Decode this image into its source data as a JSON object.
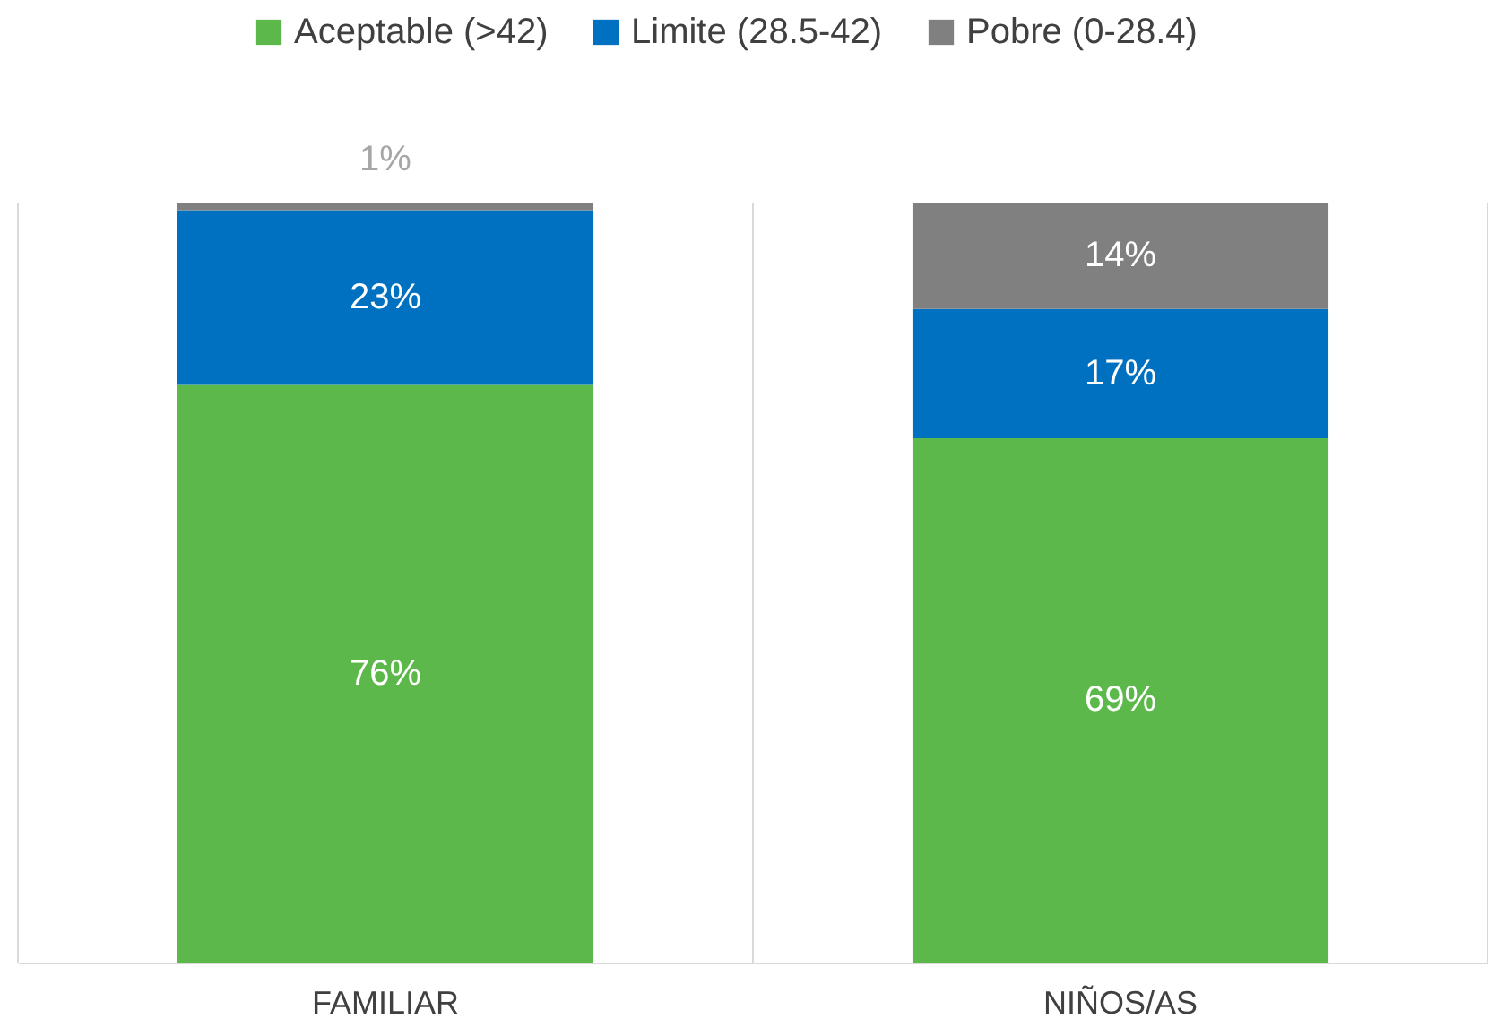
{
  "chart_data": {
    "type": "bar",
    "stacked": true,
    "categories": [
      "FAMILIAR",
      "NIÑOS/AS"
    ],
    "series": [
      {
        "name": "Aceptable (>42)",
        "color": "#5cb84a",
        "values": [
          76,
          69
        ],
        "value_labels": [
          "76%",
          "69%"
        ]
      },
      {
        "name": "Limite (28.5-42)",
        "color": "#0070c0",
        "values": [
          23,
          17
        ],
        "value_labels": [
          "23%",
          "17%"
        ]
      },
      {
        "name": "Pobre (0-28.4)",
        "color": "#808080",
        "values": [
          1,
          14
        ],
        "value_labels": [
          "1%",
          "14%"
        ]
      }
    ],
    "legend": "top",
    "grid": "x",
    "tick_labels": "x"
  }
}
